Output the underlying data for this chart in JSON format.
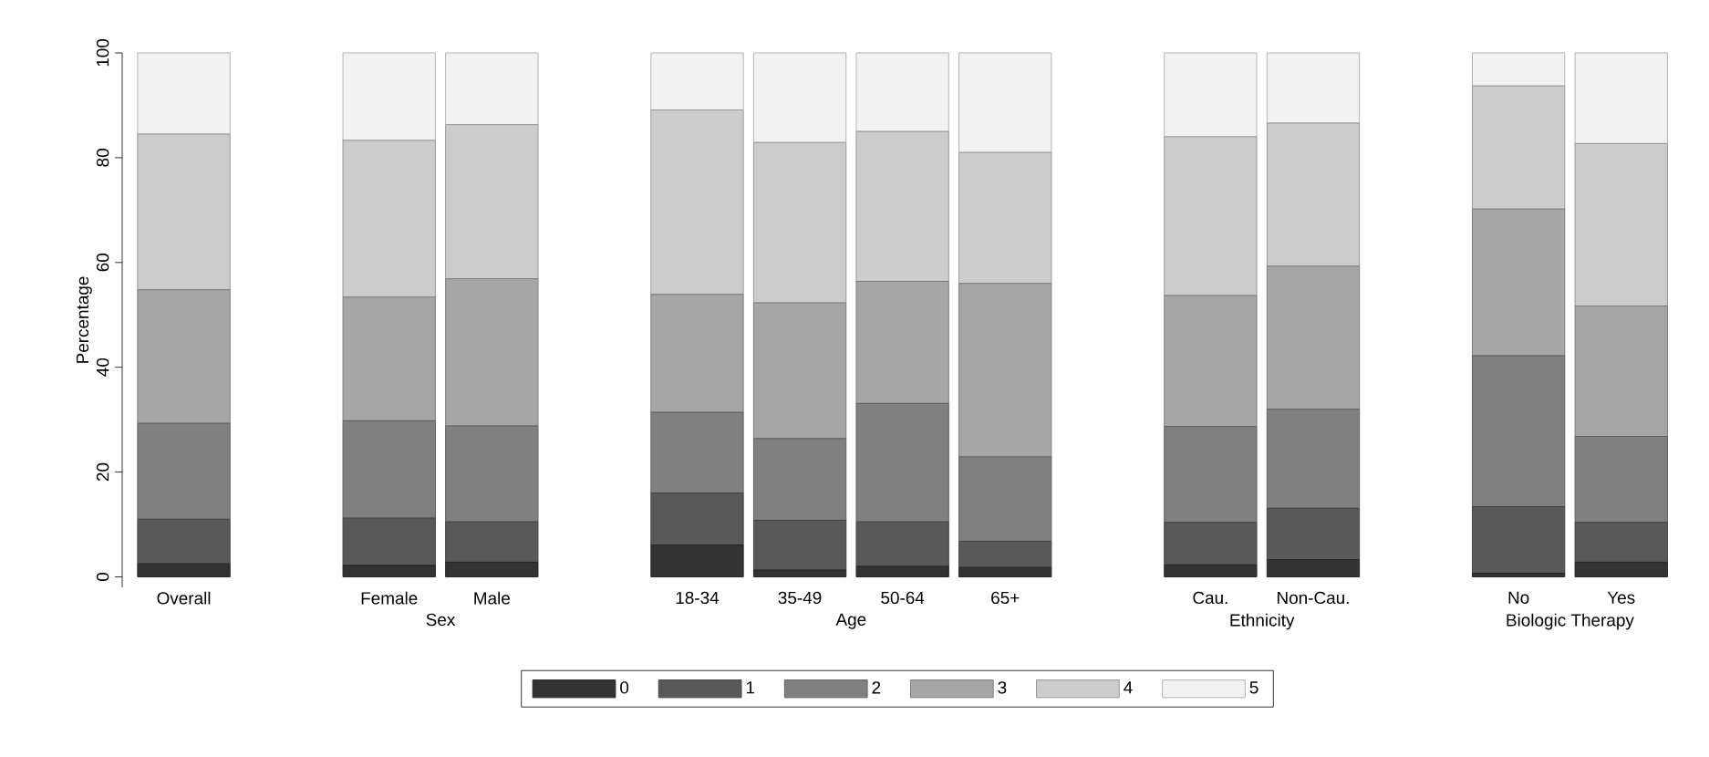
{
  "chart_data": {
    "type": "bar",
    "stacked": true,
    "categories": [
      "Overall",
      null,
      "Female",
      "Male",
      null,
      "18-34",
      "35-49",
      "50-64",
      "65+",
      null,
      "Cau.",
      "Non-Cau.",
      null,
      "No",
      "Yes"
    ],
    "ylabel": "Percentage",
    "ylim": [
      0,
      100
    ],
    "yticks": [
      0,
      20,
      40,
      60,
      80,
      100
    ],
    "legend": "bottom",
    "annotations": [
      "Sex",
      "Age",
      "Ethnicity",
      "Biologic Therapy"
    ],
    "series": [
      {
        "name": "0",
        "color": "#333333",
        "values": [
          2.5,
          null,
          2.2,
          2.8,
          null,
          6.1,
          1.3,
          2.0,
          1.8,
          null,
          2.3,
          3.3,
          null,
          0.7,
          2.8
        ]
      },
      {
        "name": "1",
        "color": "#595959",
        "values": [
          8.5,
          null,
          9.0,
          7.7,
          null,
          9.9,
          9.5,
          8.5,
          5.0,
          null,
          8.1,
          9.8,
          null,
          12.7,
          7.6
        ]
      },
      {
        "name": "2",
        "color": "#808080",
        "values": [
          18.3,
          null,
          18.6,
          18.3,
          null,
          15.4,
          15.6,
          22.6,
          16.1,
          null,
          18.3,
          18.9,
          null,
          28.8,
          16.4
        ]
      },
      {
        "name": "3",
        "color": "#a6a6a6",
        "values": [
          25.5,
          null,
          23.6,
          28.1,
          null,
          22.5,
          25.9,
          23.3,
          33.1,
          null,
          25.0,
          27.3,
          null,
          28.0,
          24.9
        ]
      },
      {
        "name": "4",
        "color": "#cccccc",
        "values": [
          29.7,
          null,
          29.9,
          29.4,
          null,
          35.2,
          30.6,
          28.6,
          25.0,
          null,
          30.3,
          27.3,
          null,
          23.5,
          31.0
        ]
      },
      {
        "name": "5",
        "color": "#f2f2f2",
        "values": [
          15.5,
          null,
          16.7,
          13.7,
          null,
          10.9,
          17.1,
          15.0,
          19.0,
          null,
          16.0,
          13.4,
          null,
          6.3,
          17.3
        ]
      }
    ]
  }
}
